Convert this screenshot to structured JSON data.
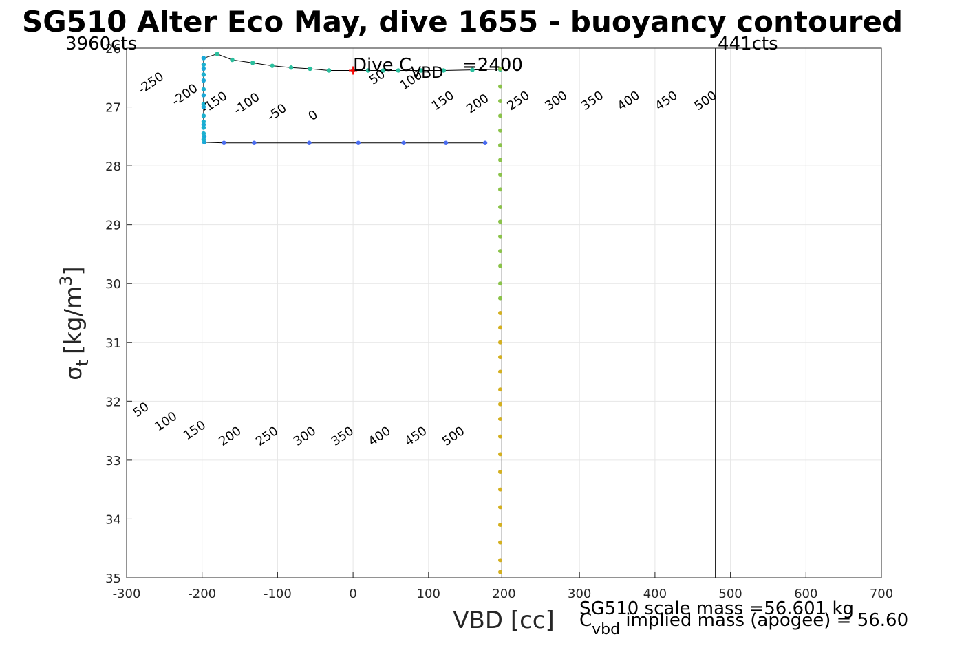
{
  "chart_data": {
    "type": "scatter",
    "title": "SG510 Alter Eco May, dive 1655 - buoyancy contoured",
    "xlabel": "VBD [cc]",
    "ylabel_parts": {
      "sigma": "σ",
      "sub": "t",
      "unit_open": "[kg/m",
      "sup": "3",
      "unit_close": "]"
    },
    "xlim": [
      -300,
      700
    ],
    "ylim": [
      26,
      35
    ],
    "y_reversed": true,
    "grid": true,
    "xticks": [
      -300,
      -200,
      -100,
      0,
      100,
      200,
      300,
      400,
      500,
      600,
      700
    ],
    "yticks": [
      26,
      27,
      28,
      29,
      30,
      31,
      32,
      33,
      34,
      35
    ],
    "contour_slope_per_sigma": 113,
    "contour_zero_intercept_vbd": 1016,
    "contour_levels": [
      -250,
      -200,
      -150,
      -100,
      -50,
      0,
      50,
      100,
      150,
      200,
      250,
      300,
      350,
      400,
      450,
      500
    ],
    "highlight_levels": [
      100,
      200
    ],
    "zero_level": 0,
    "contour_labels_upper": [
      {
        "level": -250,
        "text": "-250",
        "x": -265,
        "y": 26.65
      },
      {
        "level": -200,
        "text": "-200",
        "x": -220,
        "y": 26.85
      },
      {
        "level": -150,
        "text": "-150",
        "x": -181,
        "y": 26.98
      },
      {
        "level": -100,
        "text": "-100",
        "x": -138,
        "y": 27.0
      },
      {
        "level": -50,
        "text": "-50",
        "x": -98,
        "y": 27.15
      },
      {
        "level": 0,
        "text": "0",
        "x": -50,
        "y": 27.2
      },
      {
        "level": 50,
        "text": "50",
        "x": 35,
        "y": 26.55
      },
      {
        "level": 100,
        "text": "100",
        "x": 80,
        "y": 26.6
      },
      {
        "level": 150,
        "text": "150",
        "x": 122,
        "y": 26.95
      },
      {
        "level": 200,
        "text": "200",
        "x": 168,
        "y": 27.0
      },
      {
        "level": 250,
        "text": "250",
        "x": 222,
        "y": 26.95
      },
      {
        "level": 300,
        "text": "300",
        "x": 272,
        "y": 26.95
      },
      {
        "level": 350,
        "text": "350",
        "x": 320,
        "y": 26.95
      },
      {
        "level": 400,
        "text": "400",
        "x": 368,
        "y": 26.95
      },
      {
        "level": 450,
        "text": "450",
        "x": 418,
        "y": 26.95
      },
      {
        "level": 500,
        "text": "500",
        "x": 470,
        "y": 26.95
      }
    ],
    "contour_labels_lower": [
      {
        "level": 50,
        "text": "50",
        "x": -278,
        "y": 32.2
      },
      {
        "level": 100,
        "text": "100",
        "x": -245,
        "y": 32.4
      },
      {
        "level": 150,
        "text": "150",
        "x": -207,
        "y": 32.55
      },
      {
        "level": 200,
        "text": "200",
        "x": -160,
        "y": 32.65
      },
      {
        "level": 250,
        "text": "250",
        "x": -111,
        "y": 32.65
      },
      {
        "level": 300,
        "text": "300",
        "x": -61,
        "y": 32.65
      },
      {
        "level": 350,
        "text": "350",
        "x": -11,
        "y": 32.65
      },
      {
        "level": 400,
        "text": "400",
        "x": 38,
        "y": 32.65
      },
      {
        "level": 450,
        "text": "450",
        "x": 86,
        "y": 32.65
      },
      {
        "level": 500,
        "text": "500",
        "x": 136,
        "y": 32.65
      }
    ],
    "dive_path": [
      {
        "x": -198,
        "y": 26.17
      },
      {
        "x": -180,
        "y": 26.1
      },
      {
        "x": -160,
        "y": 26.2
      },
      {
        "x": -133,
        "y": 26.25
      },
      {
        "x": -107,
        "y": 26.3
      },
      {
        "x": -82,
        "y": 26.33
      },
      {
        "x": -57,
        "y": 26.35
      },
      {
        "x": -32,
        "y": 26.38
      },
      {
        "x": 0,
        "y": 26.38
      },
      {
        "x": 20,
        "y": 26.38
      },
      {
        "x": 40,
        "y": 26.38
      },
      {
        "x": 60,
        "y": 26.38
      },
      {
        "x": 90,
        "y": 26.38
      },
      {
        "x": 120,
        "y": 26.38
      },
      {
        "x": 158,
        "y": 26.37
      },
      {
        "x": 195,
        "y": 26.36
      }
    ],
    "climb_path": [
      {
        "x": 175,
        "y": 27.61
      },
      {
        "x": 123,
        "y": 27.61
      },
      {
        "x": 67,
        "y": 27.61
      },
      {
        "x": 7,
        "y": 27.61
      },
      {
        "x": -58,
        "y": 27.61
      },
      {
        "x": -131,
        "y": 27.61
      },
      {
        "x": -171,
        "y": 27.61
      },
      {
        "x": -197,
        "y": 27.6
      },
      {
        "x": -197,
        "y": 27.5
      },
      {
        "x": -198,
        "y": 27.3
      },
      {
        "x": -198,
        "y": 27.0
      },
      {
        "x": -198,
        "y": 26.8
      },
      {
        "x": -198,
        "y": 26.55
      },
      {
        "x": -198,
        "y": 26.35
      },
      {
        "x": -198,
        "y": 26.17
      }
    ],
    "vertical_profile": {
      "x": 195,
      "y_values": [
        26.35,
        26.65,
        26.9,
        27.15,
        27.4,
        27.65,
        27.9,
        28.15,
        28.4,
        28.7,
        28.95,
        29.2,
        29.45,
        29.7,
        30.0,
        30.25,
        30.5,
        30.75,
        31.0,
        31.25,
        31.5,
        31.8,
        32.05,
        32.3,
        32.6,
        32.9,
        33.2,
        33.5,
        33.8,
        34.1,
        34.4,
        34.7,
        34.9
      ]
    },
    "series_colors": {
      "contour": "#00e5f0",
      "highlight": "#a020f0",
      "zero": "#0000cc",
      "surface_points": "#2bbf9e",
      "climb_points": "#4a6cf0",
      "vertical_points_top": "#8bc34a",
      "vertical_points_bottom": "#d4b020",
      "marker": "#ff0000",
      "path": "#000000"
    },
    "marker": {
      "x": 0,
      "y": 26.38,
      "symbol": "+"
    },
    "vertical_lines": [
      {
        "x": 197,
        "color": "#555555"
      },
      {
        "x": 480,
        "color": "#000000"
      }
    ],
    "annotations": {
      "left_counts": "3960cts",
      "right_counts": "441cts",
      "dive_c_prefix": "Dive C",
      "dive_c_sub": "VBD",
      "dive_c_value": "=2400",
      "scale_mass": "SG510 scale mass =56.601 kg",
      "implied_c": "C",
      "implied_sub": "vbd",
      "implied_rest": " implied mass (apogee) = 56.60"
    }
  }
}
